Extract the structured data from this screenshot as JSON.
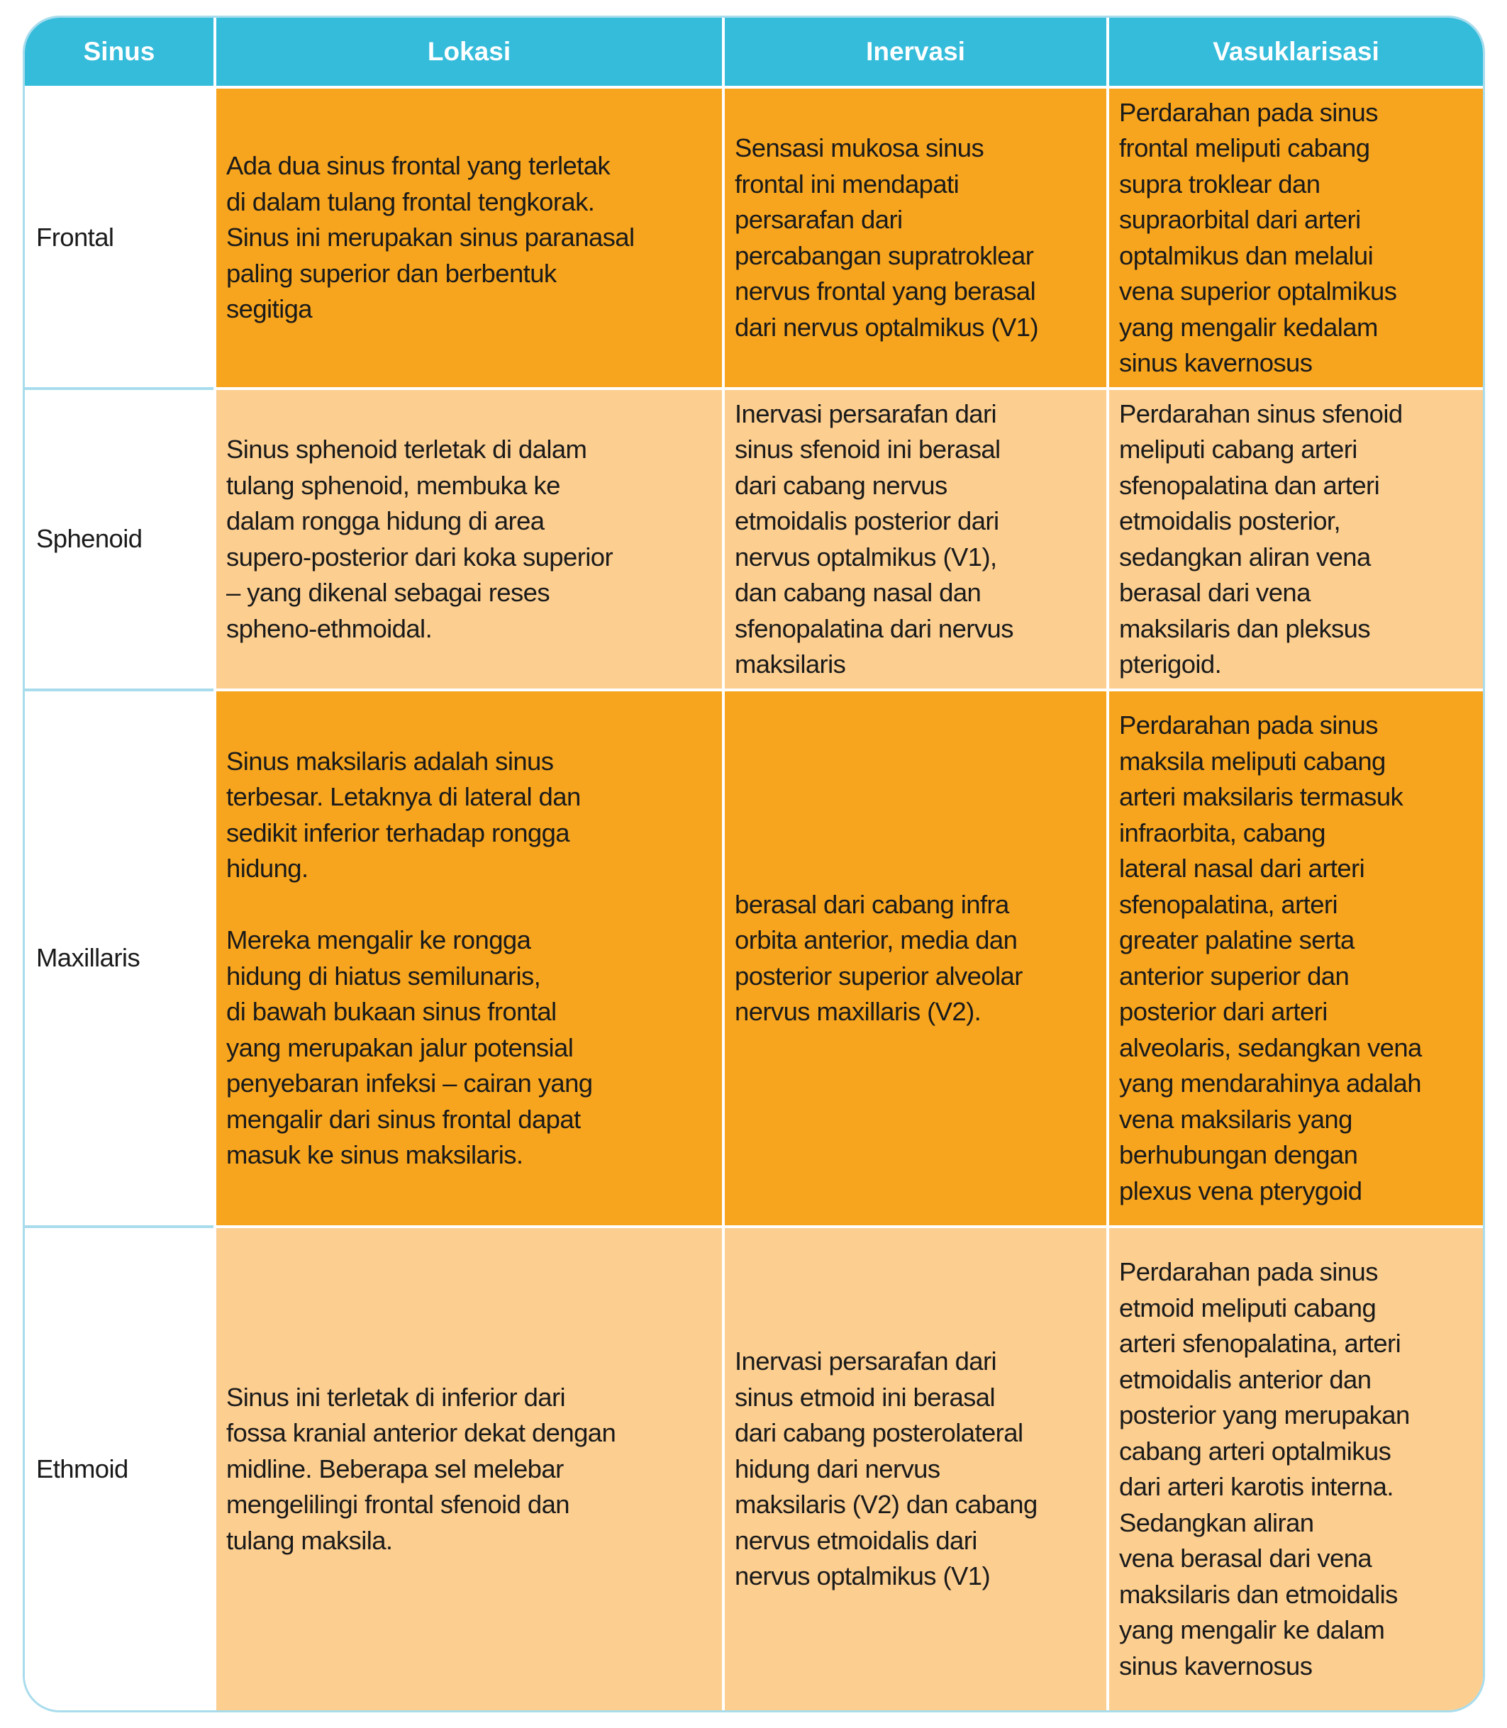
{
  "colors": {
    "header": "#35bcdb",
    "row_dark": "#f7a51e",
    "row_light": "#fcce90",
    "border": "#a8dcec"
  },
  "headers": [
    "Sinus",
    "Lokasi",
    "Inervasi",
    "Vasuklarisasi"
  ],
  "rows": [
    {
      "sinus": "Frontal",
      "shade": "dark",
      "lokasi": [
        "Ada dua sinus frontal yang terletak",
        "di dalam tulang frontal tengkorak.",
        "Sinus ini merupakan sinus paranasal",
        "paling superior dan berbentuk",
        "segitiga"
      ],
      "inervasi": [
        "Sensasi mukosa sinus",
        "frontal ini mendapati",
        "persarafan dari",
        "percabangan supratroklear",
        "nervus frontal yang berasal",
        "dari nervus optalmikus (V1)"
      ],
      "vaskularisasi": [
        "Perdarahan pada sinus",
        "frontal meliputi cabang",
        "supra troklear dan",
        "supraorbital dari arteri",
        "optalmikus dan melalui",
        "vena superior optalmikus",
        "yang mengalir kedalam",
        "sinus kavernosus"
      ]
    },
    {
      "sinus": "Sphenoid",
      "shade": "light",
      "lokasi": [
        "Sinus sphenoid terletak di dalam",
        "tulang sphenoid, membuka ke",
        "dalam rongga hidung di area",
        "supero-posterior dari koka superior",
        "– yang dikenal sebagai reses",
        "spheno-ethmoidal."
      ],
      "inervasi": [
        "Inervasi persarafan dari",
        "sinus sfenoid ini berasal",
        "dari cabang nervus",
        "etmoidalis posterior dari",
        "nervus optalmikus (V1),",
        "dan cabang nasal dan",
        "sfenopalatina dari nervus",
        "maksilaris"
      ],
      "vaskularisasi": [
        "Perdarahan sinus sfenoid",
        "meliputi cabang arteri",
        "sfenopalatina dan arteri",
        "etmoidalis posterior,",
        "sedangkan aliran vena",
        "berasal dari vena",
        "maksilaris dan pleksus",
        "pterigoid."
      ]
    },
    {
      "sinus": "Maxillaris",
      "shade": "dark",
      "lokasi": [
        "Sinus maksilaris adalah sinus",
        "terbesar. Letaknya di lateral dan",
        "sedikit inferior terhadap rongga",
        "hidung.",
        "",
        "Mereka mengalir ke rongga",
        "hidung di hiatus semilunaris,",
        "di bawah bukaan sinus frontal",
        "yang  merupakan jalur potensial",
        "penyebaran infeksi – cairan yang",
        "mengalir dari sinus frontal dapat",
        "masuk ke sinus maksilaris."
      ],
      "inervasi": [
        "berasal dari cabang infra",
        "orbita anterior, media dan",
        "posterior superior alveolar",
        "nervus maxillaris (V2)."
      ],
      "vaskularisasi": [
        "Perdarahan pada sinus",
        "maksila meliputi cabang",
        "arteri maksilaris termasuk",
        "infraorbita, cabang",
        "lateral nasal dari arteri",
        "sfenopalatina, arteri",
        "greater palatine serta",
        "anterior superior dan",
        "posterior dari arteri",
        "alveolaris, sedangkan vena",
        "yang mendarahinya adalah",
        "vena maksilaris yang",
        "berhubungan dengan",
        "plexus vena pterygoid"
      ]
    },
    {
      "sinus": "Ethmoid",
      "shade": "light",
      "lokasi": [
        "Sinus ini terletak di inferior dari",
        "fossa kranial anterior dekat dengan",
        "midline. Beberapa sel melebar",
        "mengelilingi frontal sfenoid dan",
        "tulang maksila."
      ],
      "inervasi": [
        "Inervasi persarafan dari",
        "sinus etmoid ini berasal",
        "dari cabang posterolateral",
        "hidung dari nervus",
        "maksilaris (V2) dan cabang",
        "nervus etmoidalis dari",
        "nervus optalmikus (V1)"
      ],
      "vaskularisasi": [
        "Perdarahan pada sinus",
        "etmoid meliputi cabang",
        "arteri sfenopalatina, arteri",
        "etmoidalis anterior dan",
        "posterior yang merupakan",
        "cabang arteri optalmikus",
        "dari arteri karotis interna.",
        "Sedangkan aliran",
        "vena berasal dari vena",
        "maksilaris dan etmoidalis",
        "yang mengalir ke dalam",
        "sinus kavernosus"
      ]
    }
  ]
}
